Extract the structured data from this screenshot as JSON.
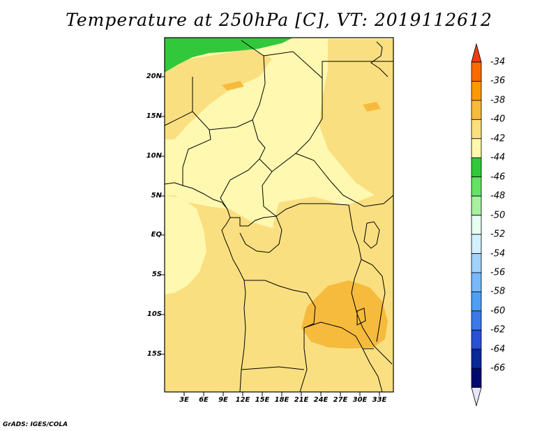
{
  "title": "Temperature at 250hPa [C], VT: 2019112612",
  "credit": "GrADS: IGES/COLA",
  "y_ticks": [
    "20N",
    "15N",
    "10N",
    "5N",
    "EQ",
    "5S",
    "10S",
    "15S"
  ],
  "x_ticks": [
    "3E",
    "6E",
    "9E",
    "12E",
    "15E",
    "18E",
    "21E",
    "24E",
    "27E",
    "30E",
    "33E"
  ],
  "colorbar": {
    "labels": [
      "-34",
      "-36",
      "-38",
      "-40",
      "-42",
      "-44",
      "-46",
      "-48",
      "-50",
      "-52",
      "-54",
      "-56",
      "-58",
      "-60",
      "-62",
      "-64",
      "-66"
    ],
    "colors": [
      "#f03c14",
      "#fa6a00",
      "#fa9a00",
      "#f6bb3c",
      "#fadf80",
      "#fff8b0",
      "#32c83c",
      "#64e264",
      "#a8f0a0",
      "#e6fff0",
      "#d2f0ff",
      "#a0d2fa",
      "#78b8f8",
      "#509ef2",
      "#3c78e6",
      "#2850d2",
      "#0a2896",
      "#000a6e",
      "#e6e6ff"
    ]
  },
  "map": {
    "base_color": "#fadf80",
    "region_colors": {
      "north_pale": "#fff8b0",
      "green_band": "#32c83c",
      "warm_patch": "#f6bb3c"
    }
  }
}
